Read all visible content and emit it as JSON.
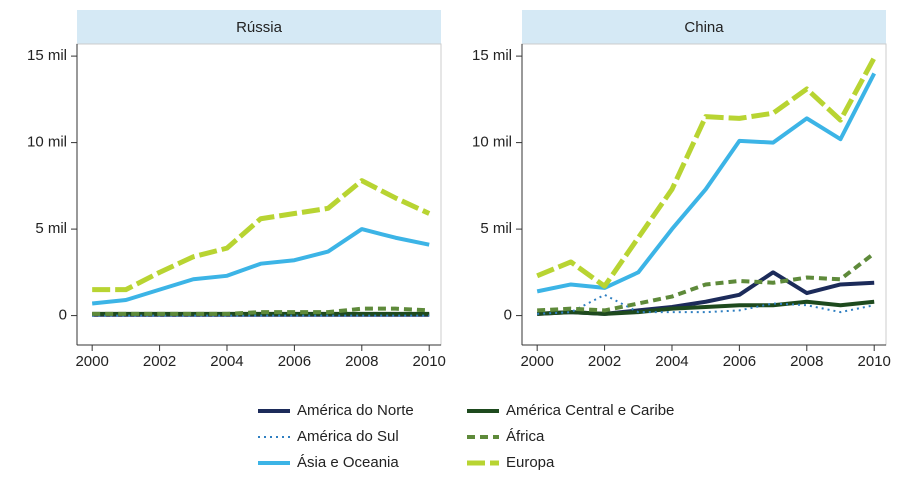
{
  "chart_data": [
    {
      "type": "line",
      "title": "Rússia",
      "x": [
        2000,
        2001,
        2002,
        2003,
        2004,
        2005,
        2006,
        2007,
        2008,
        2009,
        2010
      ],
      "xlim": [
        1999.55,
        2010.35
      ],
      "xticks": [
        2000,
        2002,
        2004,
        2006,
        2008,
        2010
      ],
      "ylim": [
        -1.7,
        15.7
      ],
      "yticks": [
        {
          "value": 0,
          "label": "0"
        },
        {
          "value": 5,
          "label": "5 mil"
        },
        {
          "value": 10,
          "label": "10 mil"
        },
        {
          "value": 15,
          "label": "15 mil"
        }
      ],
      "series": [
        {
          "name": "América do Norte",
          "color": "#1c2b5a",
          "line_style": "solid",
          "values": [
            0.05,
            0.05,
            0.05,
            0.05,
            0.05,
            0.05,
            0.05,
            0.05,
            0.05,
            0.05,
            0.05
          ]
        },
        {
          "name": "América Central e Caribe",
          "color": "#1e4a1e",
          "line_style": "solid",
          "values": [
            0.1,
            0.1,
            0.1,
            0.1,
            0.1,
            0.1,
            0.1,
            0.1,
            0.1,
            0.1,
            0.1
          ]
        },
        {
          "name": "América do Sul",
          "color": "#2f7fc1",
          "line_style": "dotted",
          "values": [
            0,
            0,
            0,
            0,
            0,
            0,
            0,
            0,
            0,
            0,
            0
          ]
        },
        {
          "name": "África",
          "color": "#5e8a3a",
          "line_style": "dashed",
          "values": [
            0.1,
            0.1,
            0.1,
            0.1,
            0.1,
            0.2,
            0.2,
            0.2,
            0.4,
            0.4,
            0.3
          ]
        },
        {
          "name": "Ásia e Oceania",
          "color": "#3cb4e6",
          "line_style": "solid",
          "values": [
            0.7,
            0.9,
            1.5,
            2.1,
            2.3,
            3.0,
            3.2,
            3.7,
            5.0,
            4.5,
            4.1
          ]
        },
        {
          "name": "Europa",
          "color": "#b8d432",
          "line_style": "longdash",
          "values": [
            1.5,
            1.5,
            2.5,
            3.4,
            3.9,
            5.6,
            5.9,
            6.2,
            7.8,
            6.8,
            5.9
          ]
        }
      ]
    },
    {
      "type": "line",
      "title": "China",
      "x": [
        2000,
        2001,
        2002,
        2003,
        2004,
        2005,
        2006,
        2007,
        2008,
        2009,
        2010
      ],
      "xlim": [
        1999.55,
        2010.35
      ],
      "xticks": [
        2000,
        2002,
        2004,
        2006,
        2008,
        2010
      ],
      "ylim": [
        -1.7,
        15.7
      ],
      "yticks": [
        {
          "value": 0,
          "label": "0"
        },
        {
          "value": 5,
          "label": "5 mil"
        },
        {
          "value": 10,
          "label": "10 mil"
        },
        {
          "value": 15,
          "label": "15 mil"
        }
      ],
      "series": [
        {
          "name": "América do Norte",
          "color": "#1c2b5a",
          "line_style": "solid",
          "values": [
            0.1,
            0.2,
            0.1,
            0.3,
            0.5,
            0.8,
            1.2,
            2.5,
            1.3,
            1.8,
            1.9
          ]
        },
        {
          "name": "América Central e Caribe",
          "color": "#1e4a1e",
          "line_style": "solid",
          "values": [
            0.1,
            0.2,
            0.1,
            0.2,
            0.4,
            0.5,
            0.6,
            0.6,
            0.8,
            0.6,
            0.8
          ]
        },
        {
          "name": "América do Sul",
          "color": "#2f7fc1",
          "line_style": "dotted",
          "values": [
            0.1,
            0.2,
            1.2,
            0.2,
            0.2,
            0.2,
            0.3,
            0.7,
            0.6,
            0.2,
            0.6
          ]
        },
        {
          "name": "África",
          "color": "#5e8a3a",
          "line_style": "dashed",
          "values": [
            0.3,
            0.4,
            0.3,
            0.7,
            1.1,
            1.8,
            2.0,
            1.9,
            2.2,
            2.1,
            3.6
          ]
        },
        {
          "name": "Ásia e Oceania",
          "color": "#3cb4e6",
          "line_style": "solid",
          "values": [
            1.4,
            1.8,
            1.6,
            2.5,
            5.0,
            7.3,
            10.1,
            10.0,
            11.4,
            10.2,
            14.0
          ]
        },
        {
          "name": "Europa",
          "color": "#b8d432",
          "line_style": "longdash",
          "values": [
            2.3,
            3.1,
            1.7,
            4.5,
            7.3,
            11.5,
            11.4,
            11.7,
            13.1,
            11.3,
            14.9
          ]
        }
      ]
    }
  ]
}
